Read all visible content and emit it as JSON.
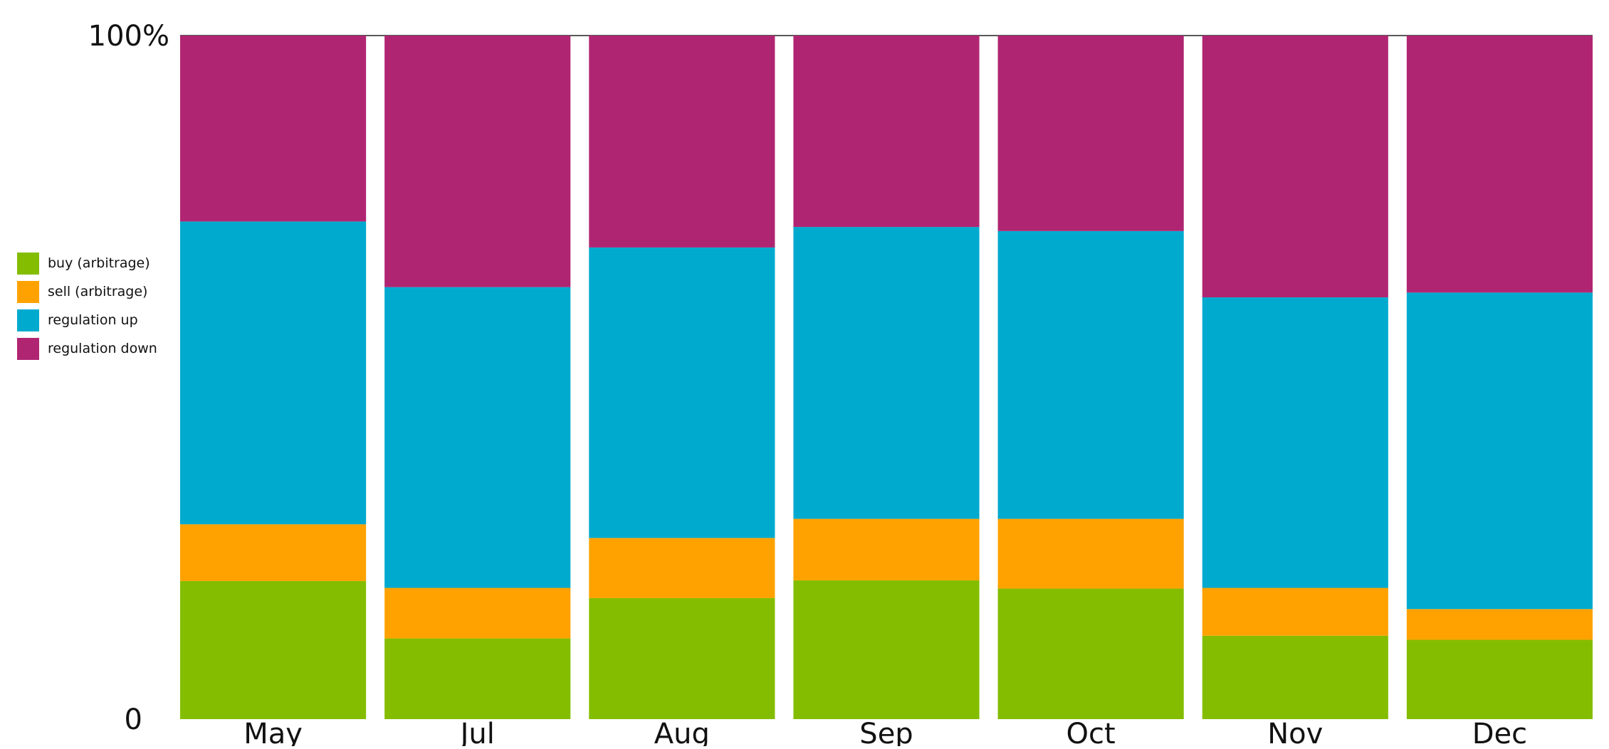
{
  "chart_data": {
    "type": "bar",
    "stacked": true,
    "normalized_percent": true,
    "categories": [
      "May",
      "Jul",
      "Aug",
      "Sep",
      "Oct",
      "Nov",
      "Dec"
    ],
    "series": [
      {
        "name": "buy (arbitrage)",
        "color": "#84bd00",
        "values": [
          20.2,
          11.8,
          17.7,
          20.3,
          19.1,
          12.2,
          11.6
        ]
      },
      {
        "name": "sell (arbitrage)",
        "color": "#ffa200",
        "values": [
          8.3,
          7.4,
          8.8,
          9.0,
          10.2,
          7.0,
          4.5
        ]
      },
      {
        "name": "regulation up",
        "color": "#00aacf",
        "values": [
          44.3,
          44.0,
          42.5,
          42.7,
          42.1,
          42.5,
          46.3
        ]
      },
      {
        "name": "regulation down",
        "color": "#b02572",
        "values": [
          27.2,
          36.8,
          31.0,
          28.0,
          28.6,
          38.3,
          37.6
        ]
      }
    ],
    "ylim": [
      0,
      100
    ],
    "y_tick_labels": [
      "0",
      "100%"
    ],
    "legend_position": "left",
    "grid": false
  }
}
